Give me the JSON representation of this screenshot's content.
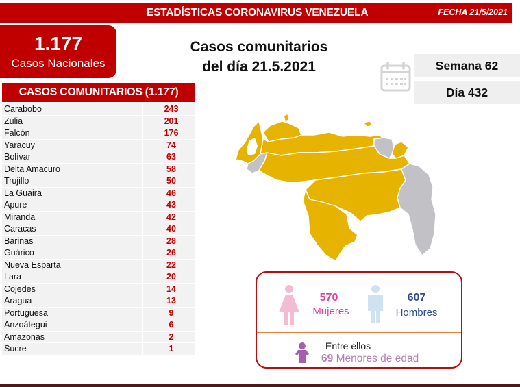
{
  "header": {
    "title": "ESTADÍSTICAS CORONAVIRUS VENEZUELA",
    "date": "FECHA 21/5/2021"
  },
  "national": {
    "total": "1.177",
    "label": "Casos Nacionales"
  },
  "headline": {
    "line1": "Casos comunitarios",
    "line2": "del día 21.5.2021"
  },
  "calendar": {
    "icon": "calendar-icon",
    "week": "Semana 62",
    "day": "Día 432"
  },
  "community_table": {
    "title": "CASOS COMUNITARIOS (1.177)",
    "rows": [
      {
        "state": "Carabobo",
        "cases": "243"
      },
      {
        "state": "Zulia",
        "cases": "201"
      },
      {
        "state": "Falcón",
        "cases": "176"
      },
      {
        "state": "Yaracuy",
        "cases": "74"
      },
      {
        "state": "Bolívar",
        "cases": "63"
      },
      {
        "state": "Delta Amacuro",
        "cases": "58"
      },
      {
        "state": "Trujillo",
        "cases": "50"
      },
      {
        "state": "La Guaira",
        "cases": "46"
      },
      {
        "state": "Apure",
        "cases": "43"
      },
      {
        "state": "Miranda",
        "cases": "42"
      },
      {
        "state": "Caracas",
        "cases": "40"
      },
      {
        "state": "Barinas",
        "cases": "28"
      },
      {
        "state": "Guárico",
        "cases": "26"
      },
      {
        "state": "Nueva Esparta",
        "cases": "22"
      },
      {
        "state": "Lara",
        "cases": "20"
      },
      {
        "state": "Cojedes",
        "cases": "14"
      },
      {
        "state": "Aragua",
        "cases": "13"
      },
      {
        "state": "Portuguesa",
        "cases": "9"
      },
      {
        "state": "Anzoátegui",
        "cases": "6"
      },
      {
        "state": "Amazonas",
        "cases": "2"
      },
      {
        "state": "Sucre",
        "cases": "1"
      }
    ]
  },
  "map": {
    "icon": "venezuela-map",
    "colors": {
      "with_cases": "#e6b400",
      "without_cases": "#c2c2c6"
    }
  },
  "demographics": {
    "female_count": "570",
    "female_label": "Mujeres",
    "male_count": "607",
    "male_label": "Hombres",
    "between_label": "Entre ellos",
    "minors_count": "69",
    "minors_label": "Menores de edad"
  },
  "colors": {
    "brand_red": "#c00000",
    "female": "#e0409a",
    "male": "#2e4b8e",
    "minor": "#b57fb8",
    "divider": "#e8803a"
  }
}
